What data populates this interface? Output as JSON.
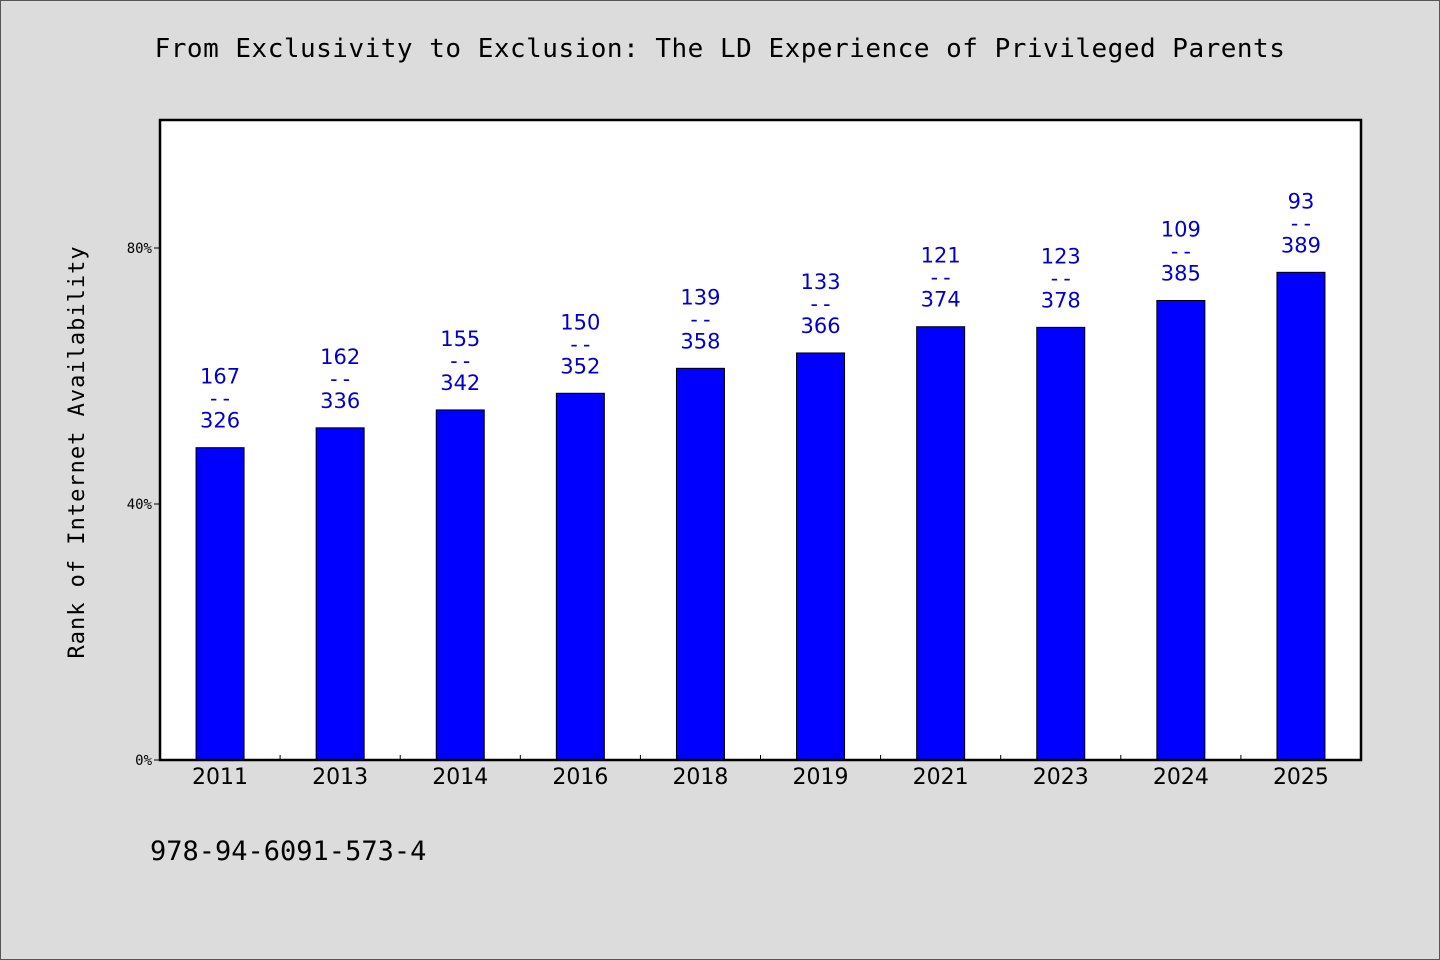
{
  "chart_data": {
    "type": "bar",
    "title": "From Exclusivity to Exclusion: The LD Experience of Privileged Parents",
    "ylabel": "Rank of Internet Availability",
    "xlabel": "",
    "ylim": [
      0,
      100
    ],
    "y_ticks": [
      {
        "value": 0,
        "label": "0%"
      },
      {
        "value": 40,
        "label": "40%"
      },
      {
        "value": 80,
        "label": "80%"
      }
    ],
    "categories": [
      "2011",
      "2013",
      "2014",
      "2016",
      "2018",
      "2019",
      "2021",
      "2023",
      "2024",
      "2025"
    ],
    "values": [
      48.8,
      51.9,
      54.7,
      57.3,
      61.2,
      63.6,
      67.7,
      67.6,
      71.8,
      76.2
    ],
    "bar_labels": [
      {
        "top": "167",
        "sep": "--",
        "bottom": "326"
      },
      {
        "top": "162",
        "sep": "--",
        "bottom": "336"
      },
      {
        "top": "155",
        "sep": "--",
        "bottom": "342"
      },
      {
        "top": "150",
        "sep": "--",
        "bottom": "352"
      },
      {
        "top": "139",
        "sep": "--",
        "bottom": "358"
      },
      {
        "top": "133",
        "sep": "--",
        "bottom": "366"
      },
      {
        "top": "121",
        "sep": "--",
        "bottom": "374"
      },
      {
        "top": "123",
        "sep": "--",
        "bottom": "378"
      },
      {
        "top": "109",
        "sep": "--",
        "bottom": "385"
      },
      {
        "top": "93",
        "sep": "--",
        "bottom": "389"
      }
    ],
    "bar_color": "#0000ff",
    "label_color": "#0000cc",
    "grid": false,
    "legend": "none"
  },
  "footer": {
    "isbn": "978-94-6091-573-4"
  }
}
